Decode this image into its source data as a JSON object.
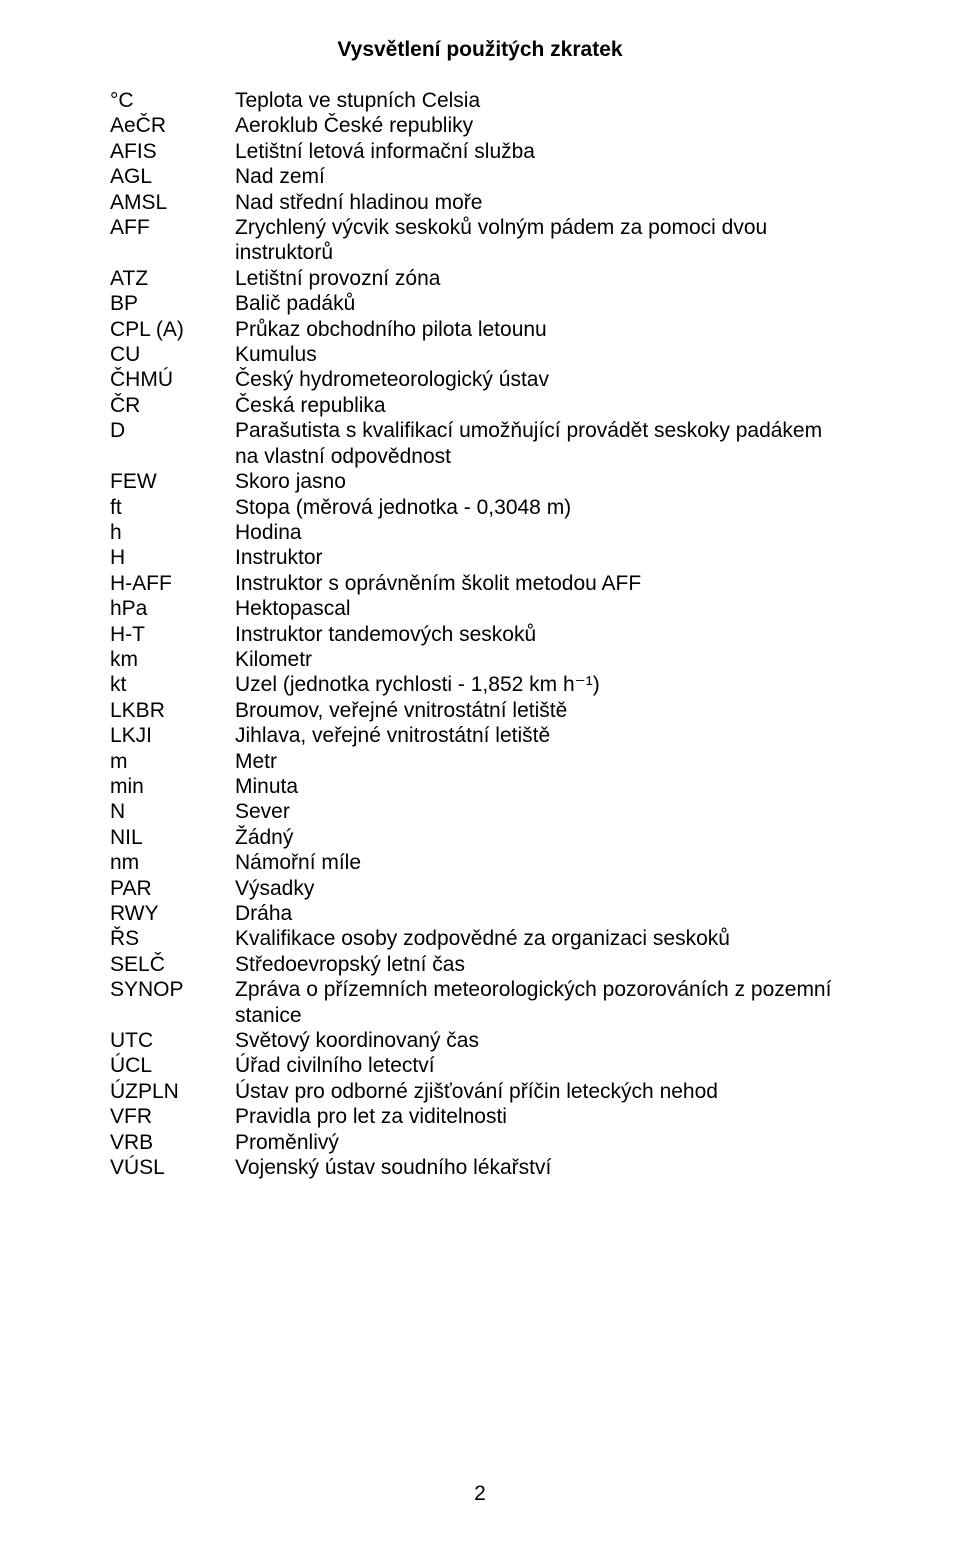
{
  "title": "Vysvětlení použitých zkratek",
  "page_number": "2",
  "rows": [
    {
      "abbr": "°C",
      "def": "Teplota ve stupních Celsia"
    },
    {
      "abbr": "AeČR",
      "def": "Aeroklub České republiky"
    },
    {
      "abbr": "AFIS",
      "def": "Letištní letová informační služba"
    },
    {
      "abbr": "AGL",
      "def": "Nad zemí"
    },
    {
      "abbr": "AMSL",
      "def": "Nad střední hladinou moře"
    },
    {
      "abbr": "AFF",
      "def": "Zrychlený výcvik seskoků volným pádem za pomoci dvou instruktorů"
    },
    {
      "abbr": "ATZ",
      "def": "Letištní provozní zóna"
    },
    {
      "abbr": "BP",
      "def": "Balič padáků"
    },
    {
      "abbr": "CPL (A)",
      "def": "Průkaz obchodního pilota letounu"
    },
    {
      "abbr": "CU",
      "def": "Kumulus"
    },
    {
      "abbr": "ČHMÚ",
      "def": "Český hydrometeorologický ústav"
    },
    {
      "abbr": "ČR",
      "def": "Česká republika"
    },
    {
      "abbr": "D",
      "def": "Parašutista s kvalifikací umožňující provádět seskoky padákem na vlastní odpovědnost"
    },
    {
      "abbr": "FEW",
      "def": "Skoro jasno"
    },
    {
      "abbr": "ft",
      "def": "Stopa (měrová jednotka - 0,3048 m)"
    },
    {
      "abbr": "h",
      "def": "Hodina"
    },
    {
      "abbr": "H",
      "def": "Instruktor"
    },
    {
      "abbr": "H-AFF",
      "def": "Instruktor s oprávněním školit metodou AFF"
    },
    {
      "abbr": "hPa",
      "def": "Hektopascal"
    },
    {
      "abbr": "H-T",
      "def": "Instruktor tandemových seskoků"
    },
    {
      "abbr": "km",
      "def": "Kilometr"
    },
    {
      "abbr": "kt",
      "def": "Uzel (jednotka rychlosti - 1,852 km h⁻¹)"
    },
    {
      "abbr": "LKBR",
      "def": "Broumov, veřejné vnitrostátní letiště"
    },
    {
      "abbr": "LKJI",
      "def": "Jihlava, veřejné vnitrostátní letiště"
    },
    {
      "abbr": "m",
      "def": "Metr"
    },
    {
      "abbr": "min",
      "def": "Minuta"
    },
    {
      "abbr": "N",
      "def": "Sever"
    },
    {
      "abbr": "NIL",
      "def": "Žádný"
    },
    {
      "abbr": "nm",
      "def": "Námořní míle"
    },
    {
      "abbr": "PAR",
      "def": "Výsadky"
    },
    {
      "abbr": "RWY",
      "def": "Dráha"
    },
    {
      "abbr": "ŘS",
      "def": "Kvalifikace osoby zodpovědné za organizaci seskoků"
    },
    {
      "abbr": "SELČ",
      "def": "Středoevropský letní čas"
    },
    {
      "abbr": "SYNOP",
      "def": "Zpráva o přízemních meteorologických pozorováních z pozemní stanice"
    },
    {
      "abbr": "UTC",
      "def": "Světový koordinovaný čas"
    },
    {
      "abbr": "ÚCL",
      "def": "Úřad civilního letectví"
    },
    {
      "abbr": "ÚZPLN",
      "def": "Ústav pro odborné zjišťování příčin leteckých nehod"
    },
    {
      "abbr": "VFR",
      "def": "Pravidla pro let za viditelnosti"
    },
    {
      "abbr": "VRB",
      "def": "Proměnlivý"
    },
    {
      "abbr": "VÚSL",
      "def": "Vojenský ústav soudního lékařství"
    }
  ]
}
